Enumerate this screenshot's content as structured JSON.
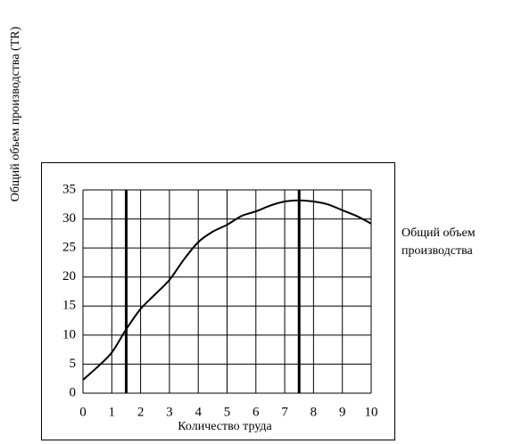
{
  "chart_data": {
    "type": "line",
    "y_label": "Общий объем производства (TR)",
    "x_label": "Количество труда",
    "x": [
      0,
      0.5,
      1,
      1.5,
      2,
      2.5,
      3,
      3.5,
      4,
      4.5,
      5,
      5.5,
      6,
      6.5,
      7,
      7.5,
      8,
      8.5,
      9,
      9.5,
      10
    ],
    "series": [
      {
        "name": "Общий объем производства",
        "color": "#000000",
        "values": [
          2.3,
          4.5,
          7,
          11,
          14.5,
          17,
          19.5,
          23,
          26,
          27.8,
          29,
          30.5,
          31.3,
          32.3,
          33,
          33.2,
          33,
          32.5,
          31.5,
          30.5,
          29.2
        ]
      }
    ],
    "vlines": [
      1.5,
      7.5
    ],
    "xlim": [
      0,
      10
    ],
    "xticks": [
      0,
      1,
      2,
      3,
      4,
      5,
      6,
      7,
      8,
      9,
      10
    ],
    "ylim": [
      0,
      35
    ],
    "yticks": [
      0,
      5,
      10,
      15,
      20,
      25,
      30,
      35
    ],
    "grid": true
  }
}
